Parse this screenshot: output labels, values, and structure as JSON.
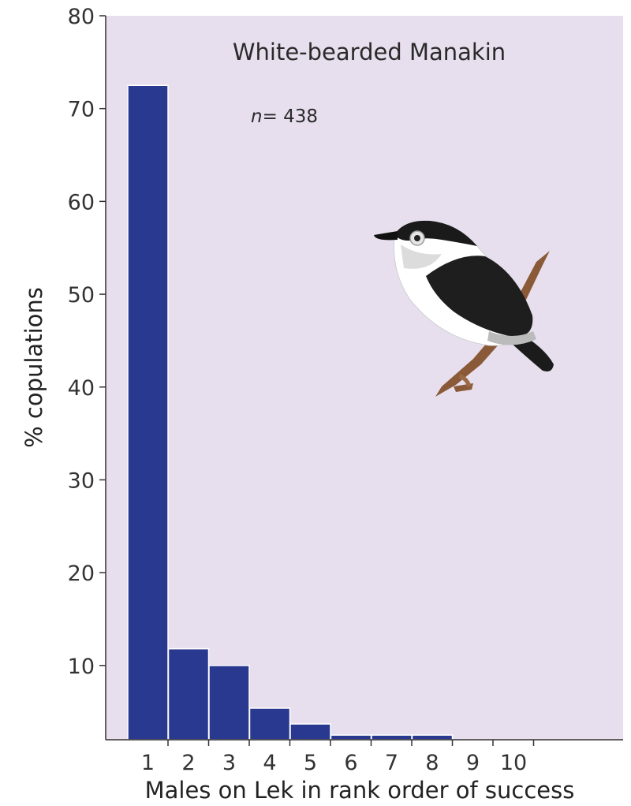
{
  "chart_data": {
    "type": "bar",
    "title": "White-bearded Manakin",
    "annotation": {
      "italic": "n",
      "text": "= 438"
    },
    "xlabel": "Males on Lek in rank order of success",
    "ylabel": "% copulations",
    "categories": [
      "1",
      "2",
      "3",
      "4",
      "5",
      "6",
      "7",
      "8",
      "9",
      "10"
    ],
    "values": [
      72.5,
      11.8,
      10.0,
      5.4,
      3.7,
      2.5,
      2.5,
      2.5,
      0,
      0
    ],
    "ylim": [
      2,
      80
    ],
    "yticks": [
      10,
      20,
      30,
      40,
      50,
      60,
      70,
      80
    ],
    "grid": false,
    "bar_color": "#2a3990",
    "plot_background": "#e8dfee"
  },
  "illustration": {
    "icon": "white-bearded-manakin-bird-icon"
  }
}
